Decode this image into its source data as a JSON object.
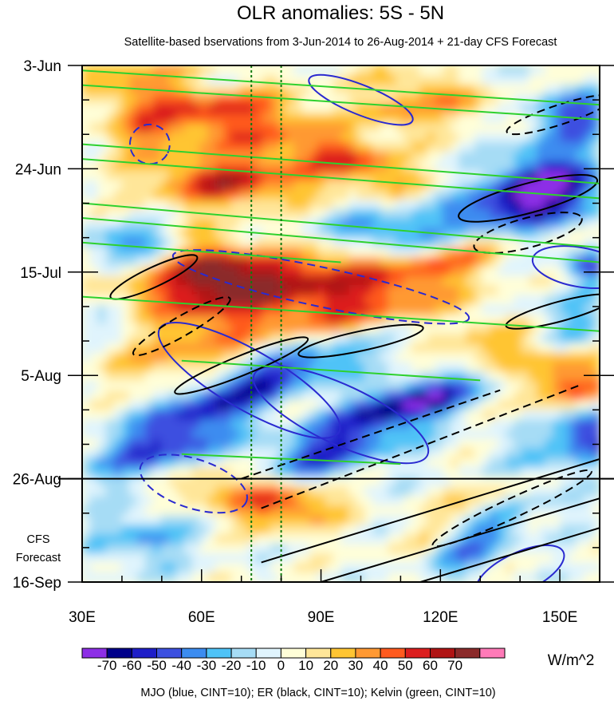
{
  "chart_data": {
    "type": "heatmap",
    "title": "OLR anomalies: 5S - 5N",
    "subtitle": "Satellite-based bservations from 3-Jun-2014 to 26-Aug-2014 + 21-day CFS Forecast",
    "x_axis": {
      "range": [
        30,
        160
      ],
      "ticks": [
        30,
        60,
        90,
        120,
        150
      ],
      "tick_labels": [
        "30E",
        "60E",
        "90E",
        "120E",
        "150E"
      ]
    },
    "y_axis": {
      "range_days": [
        0,
        105
      ],
      "ticks": [
        0,
        21,
        42,
        63,
        84,
        105
      ],
      "tick_labels": [
        "3-Jun",
        "24-Jun",
        "15-Jul",
        "5-Aug",
        "26-Aug",
        "16-Sep"
      ],
      "inverted": true
    },
    "observation_end_day": 84,
    "forecast_label_lines": [
      "CFS",
      "Forecast"
    ],
    "reference_lines_lon": [
      72.5,
      80
    ],
    "colorbar": {
      "levels": [
        -70,
        -60,
        -50,
        -40,
        -30,
        -20,
        -10,
        0,
        10,
        20,
        30,
        40,
        50,
        60,
        70
      ],
      "colors": [
        "#8d2ee6",
        "#00008a",
        "#1e1ec8",
        "#3c50e0",
        "#3c8cf0",
        "#4fc3f7",
        "#a6dcf5",
        "#e0f4fd",
        "#fffed8",
        "#ffe699",
        "#ffc533",
        "#ff9933",
        "#ff5a1e",
        "#dc1e1e",
        "#b01414",
        "#8b2a2a",
        "#ff7ab8"
      ],
      "units": "W/m^2"
    },
    "contour_legend": "MJO (blue, CINT=10); ER (black, CINT=10); Kelvin (green, CINT=10)",
    "contour_colors": {
      "MJO": "#2a2ad0",
      "ER": "#000000",
      "Kelvin": "#2ed12e"
    }
  }
}
